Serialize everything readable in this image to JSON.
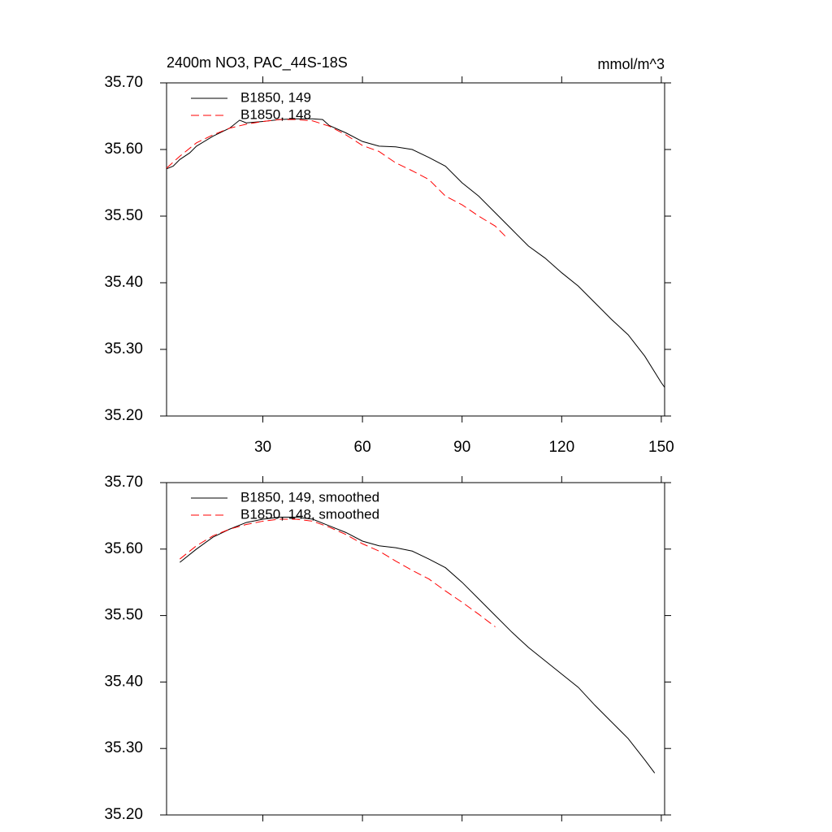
{
  "chart_data": [
    {
      "type": "line",
      "title": "2400m NO3, PAC_44S-18S",
      "units_label": "mmol/m^3",
      "xlim": [
        1,
        151
      ],
      "xticks": [
        30,
        60,
        90,
        120,
        150
      ],
      "ylim": [
        35.2,
        35.7
      ],
      "yticks": [
        {
          "value": 35.2,
          "label": "35.20"
        },
        {
          "value": 35.3,
          "label": "35.30"
        },
        {
          "value": 35.4,
          "label": "35.40"
        },
        {
          "value": 35.5,
          "label": "35.50"
        },
        {
          "value": 35.6,
          "label": "35.60"
        },
        {
          "value": 35.7,
          "label": "35.70"
        }
      ],
      "series": [
        {
          "name": "B1850, 149",
          "color": "#000000",
          "dash": false,
          "x": [
            1,
            3,
            5,
            8,
            10,
            15,
            20,
            23,
            25,
            30,
            35,
            40,
            45,
            48,
            50,
            55,
            60,
            65,
            70,
            75,
            80,
            85,
            90,
            95,
            100,
            105,
            110,
            115,
            120,
            125,
            130,
            135,
            140,
            145,
            150,
            151
          ],
          "values": [
            35.571,
            35.575,
            35.585,
            35.595,
            35.605,
            35.62,
            35.632,
            35.644,
            35.64,
            35.642,
            35.645,
            35.646,
            35.646,
            35.645,
            35.636,
            35.625,
            35.612,
            35.605,
            35.604,
            35.6,
            35.588,
            35.575,
            35.55,
            35.53,
            35.505,
            35.48,
            35.455,
            35.437,
            35.415,
            35.395,
            35.37,
            35.345,
            35.322,
            35.29,
            35.25,
            35.243
          ]
        },
        {
          "name": "B1850, 148",
          "color": "#ff0000",
          "dash": true,
          "x": [
            1,
            5,
            10,
            15,
            20,
            25,
            30,
            35,
            40,
            45,
            50,
            55,
            60,
            65,
            70,
            75,
            80,
            85,
            90,
            95,
            100,
            103
          ],
          "values": [
            35.572,
            35.59,
            35.61,
            35.622,
            35.632,
            35.638,
            35.642,
            35.645,
            35.645,
            35.643,
            35.635,
            35.622,
            35.606,
            35.597,
            35.58,
            35.568,
            35.555,
            35.53,
            35.517,
            35.5,
            35.485,
            35.47
          ]
        }
      ]
    },
    {
      "type": "line",
      "xlim": [
        1,
        151
      ],
      "ylim": [
        35.2,
        35.7
      ],
      "yticks": [
        {
          "value": 35.2,
          "label": "35.20"
        },
        {
          "value": 35.3,
          "label": "35.30"
        },
        {
          "value": 35.4,
          "label": "35.40"
        },
        {
          "value": 35.5,
          "label": "35.50"
        },
        {
          "value": 35.6,
          "label": "35.60"
        },
        {
          "value": 35.7,
          "label": "35.70"
        }
      ],
      "series": [
        {
          "name": "B1850, 149, smoothed",
          "color": "#000000",
          "dash": false,
          "x": [
            5,
            10,
            15,
            20,
            25,
            30,
            35,
            40,
            45,
            50,
            55,
            60,
            65,
            70,
            75,
            80,
            85,
            90,
            95,
            100,
            105,
            110,
            115,
            120,
            125,
            130,
            135,
            140,
            145,
            148
          ],
          "values": [
            35.58,
            35.6,
            35.618,
            35.63,
            35.64,
            35.645,
            35.648,
            35.648,
            35.645,
            35.635,
            35.625,
            35.612,
            35.605,
            35.602,
            35.597,
            35.585,
            35.572,
            35.55,
            35.525,
            35.5,
            35.475,
            35.452,
            35.432,
            35.412,
            35.392,
            35.365,
            35.34,
            35.315,
            35.283,
            35.263
          ]
        },
        {
          "name": "B1850, 148, smoothed",
          "color": "#ff0000",
          "dash": true,
          "x": [
            5,
            10,
            15,
            20,
            25,
            30,
            35,
            40,
            45,
            50,
            55,
            60,
            65,
            70,
            75,
            80,
            85,
            90,
            95,
            100
          ],
          "values": [
            35.585,
            35.605,
            35.62,
            35.63,
            35.637,
            35.642,
            35.645,
            35.645,
            35.642,
            35.633,
            35.622,
            35.608,
            35.597,
            35.582,
            35.568,
            35.555,
            35.537,
            35.52,
            35.502,
            35.483
          ]
        }
      ]
    }
  ]
}
